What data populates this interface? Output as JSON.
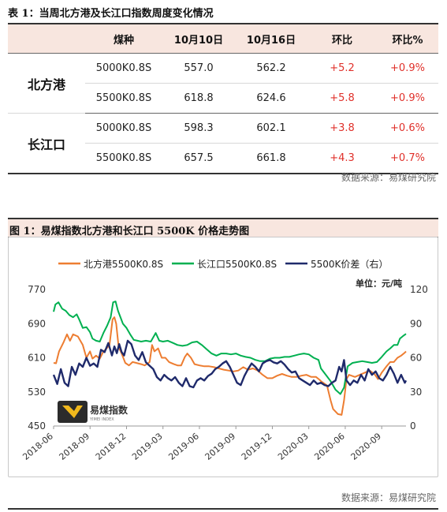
{
  "table": {
    "title": "表 1：当周北方港及长江口指数周度变化情况",
    "headers": [
      "",
      "煤种",
      "10月10日",
      "10月16日",
      "环比",
      "环比%"
    ],
    "groups": [
      {
        "region": "北方港",
        "rows": [
          {
            "coal": "5000K0.8S",
            "prev": "557.0",
            "curr": "562.2",
            "chg": "+5.2",
            "pct": "+0.9%"
          },
          {
            "coal": "5500K0.8S",
            "prev": "618.8",
            "curr": "624.6",
            "chg": "+5.8",
            "pct": "+0.9%"
          }
        ]
      },
      {
        "region": "长江口",
        "rows": [
          {
            "coal": "5000K0.8S",
            "prev": "598.3",
            "curr": "602.1",
            "chg": "+3.8",
            "pct": "+0.6%"
          },
          {
            "coal": "5500K0.8S",
            "prev": "657.5",
            "curr": "661.8",
            "chg": "+4.3",
            "pct": "+0.7%"
          }
        ]
      }
    ],
    "source": "数据来源：易煤研究院"
  },
  "figure": {
    "title": "图 1：易煤指数北方港和长江口 5500K 价格走势图",
    "unit": "单位：元/吨",
    "logo_text": "易煤指数",
    "logo_subtext": "YIMEI INDEX",
    "source": "数据来源：易煤研究院"
  },
  "colors": {
    "north": "#ed7d31",
    "yangtze": "#00b050",
    "spread": "#1f2a6b",
    "positive": "#e0302a",
    "header_bg": "#f8e6df"
  },
  "chart_data": {
    "type": "line",
    "x_ticks": [
      "2018-06",
      "2018-09",
      "2018-12",
      "2019-03",
      "2019-06",
      "2019-09",
      "2019-12",
      "2020-03",
      "2020-06",
      "2020-09"
    ],
    "x_start": "2018-06",
    "x_end": "2020-11",
    "y_left": {
      "range": [
        450,
        770
      ],
      "ticks": [
        450,
        530,
        610,
        690,
        770
      ]
    },
    "y_right": {
      "range": [
        0,
        120
      ],
      "ticks": [
        0,
        30,
        60,
        90,
        120
      ]
    },
    "legend_position": "top",
    "series": [
      {
        "name": "北方港5500K0.8S",
        "axis": "left",
        "color": "#ed7d31",
        "points": [
          [
            0,
            598
          ],
          [
            0.2,
            597
          ],
          [
            0.45,
            625
          ],
          [
            0.8,
            645
          ],
          [
            1.1,
            665
          ],
          [
            1.35,
            650
          ],
          [
            1.6,
            665
          ],
          [
            2,
            660
          ],
          [
            2.4,
            640
          ],
          [
            2.7,
            610
          ],
          [
            3,
            625
          ],
          [
            3.2,
            608
          ],
          [
            3.5,
            615
          ],
          [
            3.8,
            608
          ],
          [
            4.1,
            625
          ],
          [
            4.3,
            630
          ],
          [
            4.6,
            640
          ],
          [
            4.85,
            700
          ],
          [
            5.0,
            705
          ],
          [
            5.15,
            690
          ],
          [
            5.35,
            635
          ],
          [
            5.6,
            620
          ],
          [
            5.9,
            598
          ],
          [
            6.2,
            592
          ],
          [
            6.5,
            600
          ],
          [
            6.8,
            598
          ],
          [
            7.2,
            595
          ],
          [
            7.5,
            592
          ],
          [
            7.9,
            600
          ],
          [
            8.1,
            640
          ],
          [
            8.3,
            625
          ],
          [
            8.6,
            632
          ],
          [
            8.9,
            610
          ],
          [
            9.2,
            610
          ],
          [
            9.5,
            600
          ],
          [
            9.9,
            595
          ],
          [
            10.2,
            592
          ],
          [
            10.5,
            592
          ],
          [
            10.8,
            612
          ],
          [
            11.0,
            620
          ],
          [
            11.3,
            610
          ],
          [
            11.6,
            595
          ],
          [
            12.0,
            592
          ],
          [
            12.4,
            590
          ],
          [
            12.8,
            590
          ],
          [
            13.2,
            588
          ],
          [
            13.6,
            585
          ],
          [
            14.0,
            582
          ],
          [
            14.4,
            580
          ],
          [
            14.8,
            578
          ],
          [
            15.2,
            580
          ],
          [
            15.6,
            588
          ],
          [
            16.0,
            582
          ],
          [
            16.4,
            585
          ],
          [
            16.8,
            580
          ],
          [
            17.2,
            570
          ],
          [
            17.6,
            562
          ],
          [
            18.0,
            562
          ],
          [
            18.4,
            568
          ],
          [
            18.8,
            572
          ],
          [
            19.2,
            568
          ],
          [
            19.6,
            565
          ],
          [
            20.0,
            565
          ],
          [
            20.4,
            568
          ],
          [
            20.8,
            570
          ],
          [
            21.2,
            565
          ],
          [
            21.6,
            565
          ],
          [
            21.9,
            558
          ],
          [
            22.0,
            555
          ],
          [
            22.5,
            545
          ],
          [
            22.8,
            510
          ],
          [
            23.0,
            490
          ],
          [
            23.4,
            478
          ],
          [
            23.7,
            476
          ],
          [
            23.9,
            510
          ],
          [
            24.1,
            560
          ],
          [
            24.3,
            570
          ],
          [
            24.8,
            565
          ],
          [
            25.2,
            570
          ],
          [
            25.6,
            575
          ],
          [
            26.0,
            580
          ],
          [
            26.4,
            572
          ],
          [
            26.7,
            560
          ],
          [
            27.0,
            575
          ],
          [
            27.4,
            590
          ],
          [
            27.7,
            600
          ],
          [
            28.0,
            600
          ],
          [
            28.3,
            610
          ],
          [
            28.6,
            615
          ],
          [
            28.9,
            622
          ],
          [
            29.0,
            625
          ]
        ]
      },
      {
        "name": "长江口5500K0.8S",
        "axis": "left",
        "color": "#00b050",
        "points": [
          [
            0,
            718
          ],
          [
            0.15,
            735
          ],
          [
            0.4,
            740
          ],
          [
            0.7,
            725
          ],
          [
            1.0,
            720
          ],
          [
            1.3,
            710
          ],
          [
            1.6,
            705
          ],
          [
            1.9,
            712
          ],
          [
            2.1,
            700
          ],
          [
            2.4,
            680
          ],
          [
            2.7,
            682
          ],
          [
            3.0,
            670
          ],
          [
            3.2,
            655
          ],
          [
            3.5,
            650
          ],
          [
            3.8,
            648
          ],
          [
            4.1,
            668
          ],
          [
            4.4,
            685
          ],
          [
            4.7,
            705
          ],
          [
            4.9,
            740
          ],
          [
            5.1,
            742
          ],
          [
            5.3,
            720
          ],
          [
            5.5,
            705
          ],
          [
            5.7,
            690
          ],
          [
            6.0,
            680
          ],
          [
            6.3,
            665
          ],
          [
            6.6,
            652
          ],
          [
            6.9,
            650
          ],
          [
            7.2,
            648
          ],
          [
            7.6,
            650
          ],
          [
            8.0,
            648
          ],
          [
            8.4,
            668
          ],
          [
            8.7,
            650
          ],
          [
            9.0,
            648
          ],
          [
            9.4,
            650
          ],
          [
            9.8,
            645
          ],
          [
            10.2,
            640
          ],
          [
            10.6,
            638
          ],
          [
            11.0,
            640
          ],
          [
            11.4,
            646
          ],
          [
            11.8,
            648
          ],
          [
            12.2,
            640
          ],
          [
            12.6,
            630
          ],
          [
            13.0,
            620
          ],
          [
            13.4,
            615
          ],
          [
            13.8,
            620
          ],
          [
            14.2,
            620
          ],
          [
            14.6,
            618
          ],
          [
            15.0,
            620
          ],
          [
            15.4,
            615
          ],
          [
            15.8,
            612
          ],
          [
            16.2,
            610
          ],
          [
            16.6,
            605
          ],
          [
            17.0,
            602
          ],
          [
            17.4,
            602
          ],
          [
            17.8,
            608
          ],
          [
            18.2,
            610
          ],
          [
            18.6,
            610
          ],
          [
            19.0,
            612
          ],
          [
            19.4,
            612
          ],
          [
            19.8,
            615
          ],
          [
            20.2,
            618
          ],
          [
            20.6,
            620
          ],
          [
            21.0,
            618
          ],
          [
            21.4,
            610
          ],
          [
            21.8,
            605
          ],
          [
            22.0,
            585
          ],
          [
            22.4,
            570
          ],
          [
            22.8,
            555
          ],
          [
            23.2,
            535
          ],
          [
            23.6,
            525
          ],
          [
            23.9,
            540
          ],
          [
            24.2,
            590
          ],
          [
            24.6,
            598
          ],
          [
            25.0,
            600
          ],
          [
            25.4,
            602
          ],
          [
            25.8,
            600
          ],
          [
            26.2,
            598
          ],
          [
            26.6,
            600
          ],
          [
            27.0,
            612
          ],
          [
            27.4,
            625
          ],
          [
            27.7,
            632
          ],
          [
            28.0,
            640
          ],
          [
            28.3,
            640
          ],
          [
            28.5,
            655
          ],
          [
            28.8,
            662
          ],
          [
            29.0,
            666
          ]
        ]
      },
      {
        "name": "5500K价差（右）",
        "axis": "right",
        "color": "#1f2a6b",
        "points": [
          [
            0,
            45
          ],
          [
            0.3,
            37
          ],
          [
            0.6,
            50
          ],
          [
            0.9,
            38
          ],
          [
            1.2,
            35
          ],
          [
            1.5,
            52
          ],
          [
            1.8,
            45
          ],
          [
            2.1,
            55
          ],
          [
            2.4,
            52
          ],
          [
            2.7,
            60
          ],
          [
            3.0,
            53
          ],
          [
            3.3,
            55
          ],
          [
            3.6,
            52
          ],
          [
            3.9,
            67
          ],
          [
            4.2,
            65
          ],
          [
            4.5,
            73
          ],
          [
            4.8,
            62
          ],
          [
            5.0,
            70
          ],
          [
            5.2,
            64
          ],
          [
            5.4,
            72
          ],
          [
            5.6,
            65
          ],
          [
            5.8,
            62
          ],
          [
            6.1,
            75
          ],
          [
            6.4,
            72
          ],
          [
            6.7,
            62
          ],
          [
            7.0,
            58
          ],
          [
            7.3,
            65
          ],
          [
            7.6,
            56
          ],
          [
            7.9,
            53
          ],
          [
            8.2,
            50
          ],
          [
            8.5,
            43
          ],
          [
            8.8,
            40
          ],
          [
            9.1,
            45
          ],
          [
            9.4,
            42
          ],
          [
            9.7,
            40
          ],
          [
            10.0,
            43
          ],
          [
            10.3,
            38
          ],
          [
            10.6,
            35
          ],
          [
            10.9,
            42
          ],
          [
            11.2,
            35
          ],
          [
            11.5,
            34
          ],
          [
            11.8,
            40
          ],
          [
            12.1,
            42
          ],
          [
            12.4,
            40
          ],
          [
            12.7,
            44
          ],
          [
            13.0,
            46
          ],
          [
            13.3,
            50
          ],
          [
            13.6,
            52
          ],
          [
            13.9,
            55
          ],
          [
            14.2,
            57
          ],
          [
            14.5,
            52
          ],
          [
            14.8,
            45
          ],
          [
            15.1,
            38
          ],
          [
            15.4,
            36
          ],
          [
            15.7,
            44
          ],
          [
            16.0,
            50
          ],
          [
            16.3,
            55
          ],
          [
            16.6,
            52
          ],
          [
            16.9,
            48
          ],
          [
            17.2,
            55
          ],
          [
            17.5,
            57
          ],
          [
            17.8,
            58
          ],
          [
            18.1,
            56
          ],
          [
            18.4,
            55
          ],
          [
            18.7,
            57
          ],
          [
            19.0,
            54
          ],
          [
            19.3,
            50
          ],
          [
            19.6,
            47
          ],
          [
            19.9,
            48
          ],
          [
            20.2,
            42
          ],
          [
            20.5,
            40
          ],
          [
            20.8,
            38
          ],
          [
            21.1,
            36
          ],
          [
            21.4,
            40
          ],
          [
            21.7,
            37
          ],
          [
            22.0,
            38
          ],
          [
            22.3,
            36
          ],
          [
            22.6,
            35
          ],
          [
            22.9,
            38
          ],
          [
            23.2,
            40
          ],
          [
            23.5,
            52
          ],
          [
            23.7,
            48
          ],
          [
            23.9,
            58
          ],
          [
            24.1,
            40
          ],
          [
            24.4,
            36
          ],
          [
            24.7,
            40
          ],
          [
            25.0,
            38
          ],
          [
            25.3,
            45
          ],
          [
            25.6,
            40
          ],
          [
            25.9,
            50
          ],
          [
            26.2,
            45
          ],
          [
            26.5,
            48
          ],
          [
            26.8,
            42
          ],
          [
            27.1,
            40
          ],
          [
            27.4,
            45
          ],
          [
            27.7,
            52
          ],
          [
            28.0,
            46
          ],
          [
            28.3,
            38
          ],
          [
            28.6,
            45
          ],
          [
            28.9,
            38
          ],
          [
            29.0,
            40
          ]
        ]
      }
    ]
  }
}
